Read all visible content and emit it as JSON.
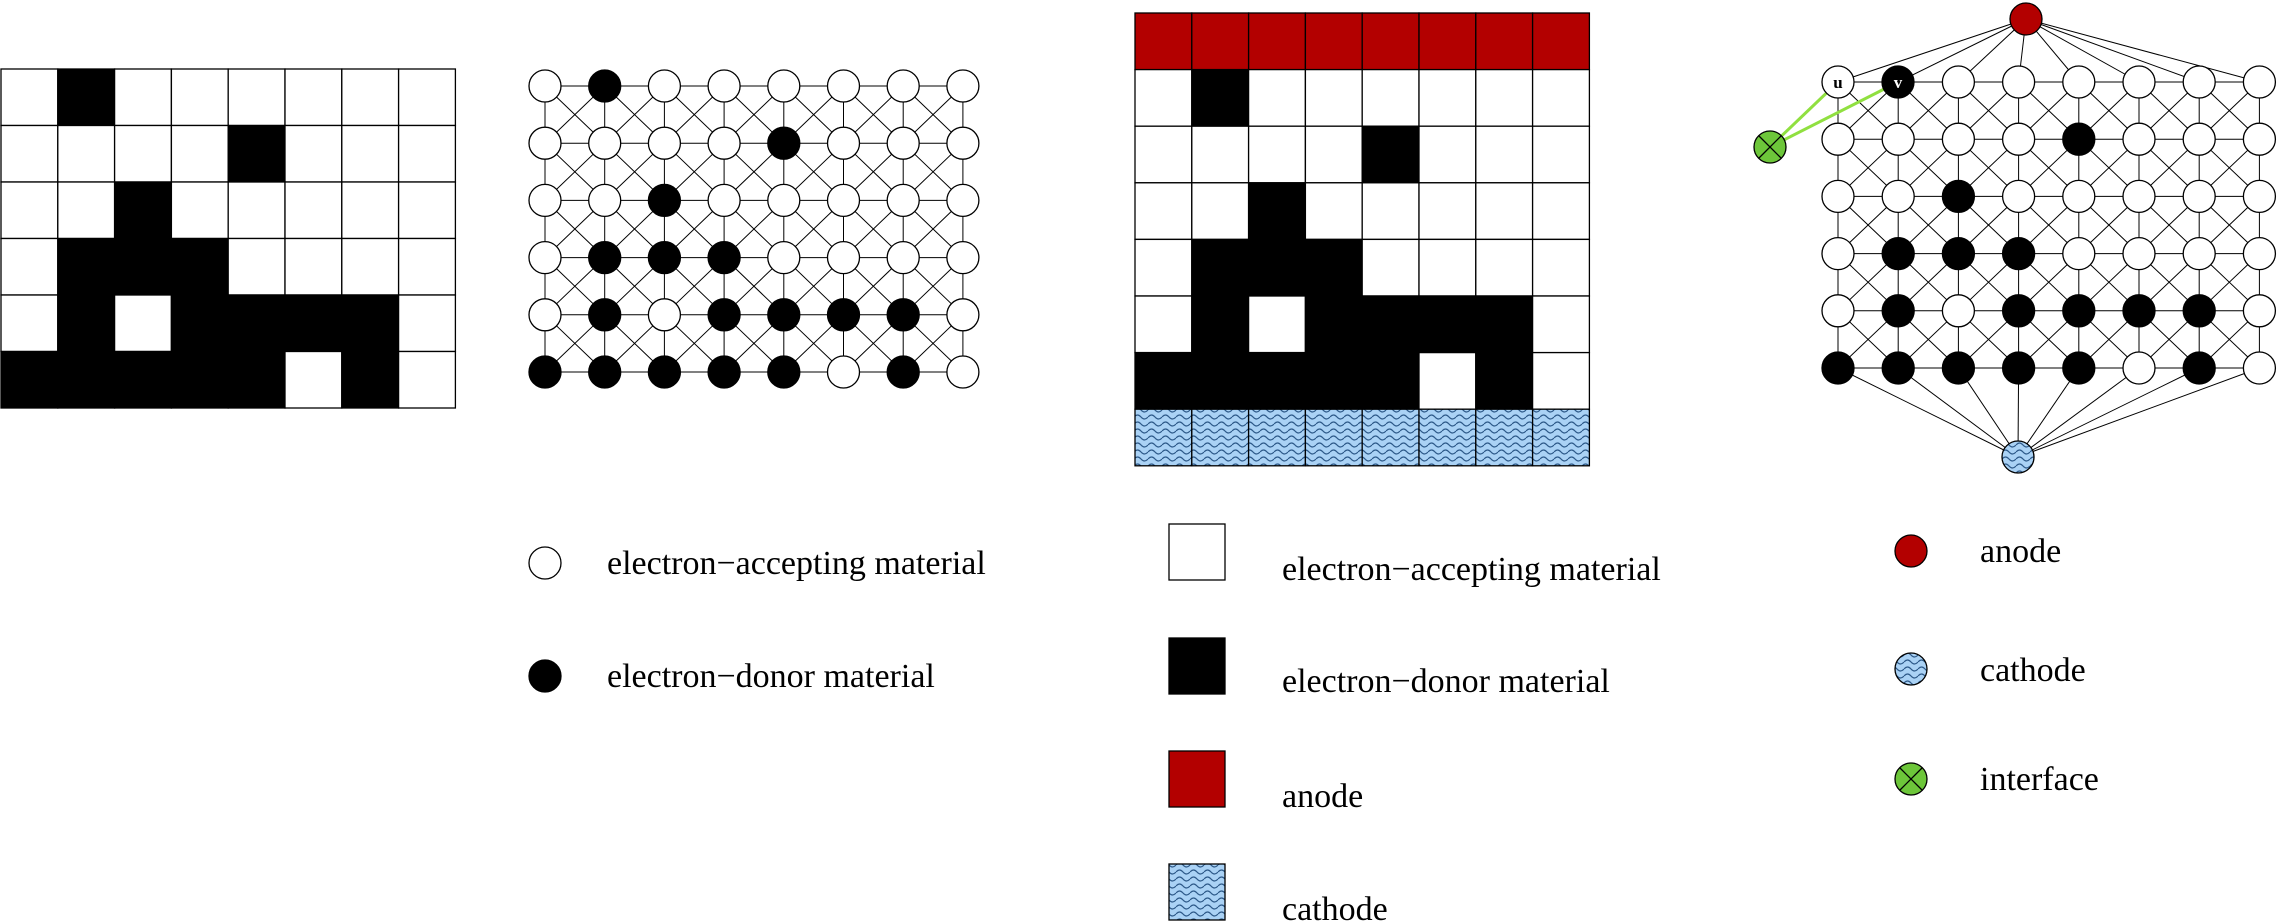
{
  "grid": {
    "rows": [
      [
        0,
        1,
        0,
        0,
        0,
        0,
        0,
        0
      ],
      [
        0,
        0,
        0,
        0,
        1,
        0,
        0,
        0
      ],
      [
        0,
        0,
        1,
        0,
        0,
        0,
        0,
        0
      ],
      [
        0,
        1,
        1,
        1,
        0,
        0,
        0,
        0
      ],
      [
        0,
        1,
        0,
        1,
        1,
        1,
        1,
        0
      ],
      [
        1,
        1,
        1,
        1,
        1,
        0,
        1,
        0
      ]
    ]
  },
  "colors": {
    "acceptor": "#ffffff",
    "donor": "#000000",
    "anode": "#b30000",
    "cathode": "#aad2f5",
    "interface": "#6dc63a",
    "interface_edge": "#90e040"
  },
  "icons": {
    "interface_node": "circle-cross-icon",
    "cathode_node": "wave-circle-icon",
    "cathode_cells": "wave-pattern"
  },
  "graph_labels": {
    "u": "u",
    "v": "v"
  },
  "legend_graph": {
    "acceptor": "electron−accepting material",
    "donor": "electron−donor material"
  },
  "legend_cells": {
    "acceptor": "electron−accepting material",
    "donor": "electron−donor material",
    "anode": "anode",
    "cathode": "cathode"
  },
  "legend_electrodes": {
    "anode": "anode",
    "cathode": "cathode",
    "interface": "interface"
  }
}
